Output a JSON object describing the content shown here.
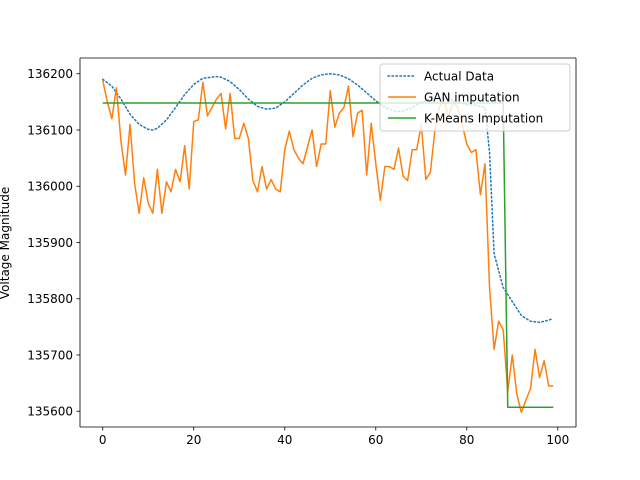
{
  "chart_data": {
    "type": "line",
    "title": "",
    "xlabel": "",
    "ylabel": "Voltage Magnitude",
    "xlim": [
      -5,
      104
    ],
    "ylim": [
      135572,
      136228
    ],
    "xticks": [
      0,
      20,
      40,
      60,
      80,
      100
    ],
    "yticks": [
      135600,
      135700,
      135800,
      135900,
      136000,
      136100,
      136200
    ],
    "grid": false,
    "legend_position": "top-right",
    "series": [
      {
        "name": "Actual Data",
        "color": "#1f77b4",
        "style": "dotted",
        "x": [
          0,
          2,
          4,
          6,
          8,
          10,
          11,
          12,
          14,
          16,
          18,
          20,
          22,
          24,
          25,
          26,
          28,
          30,
          32,
          34,
          36,
          37,
          38,
          40,
          42,
          44,
          46,
          48,
          50,
          51,
          52,
          54,
          56,
          58,
          60,
          62,
          64,
          65,
          66,
          68,
          70,
          72,
          74,
          75,
          76,
          78,
          80,
          82,
          84,
          85,
          86,
          88,
          90,
          92,
          94,
          96,
          98,
          99
        ],
        "values": [
          136190,
          136178,
          136155,
          136128,
          136110,
          136101,
          136100,
          136103,
          136118,
          136140,
          136163,
          136181,
          136192,
          136194,
          136195,
          136194,
          136186,
          136172,
          136155,
          136142,
          136137,
          136138,
          136139,
          136150,
          136165,
          136180,
          136192,
          136198,
          136200,
          136199,
          136198,
          136191,
          136180,
          136166,
          136152,
          136140,
          136134,
          136133,
          136134,
          136140,
          136150,
          136155,
          136156,
          136156,
          136155,
          136150,
          136145,
          136144,
          136140,
          136060,
          135880,
          135820,
          135795,
          135770,
          135760,
          135758,
          135762,
          135765
        ]
      },
      {
        "name": "GAN imputation",
        "color": "#ff7f0e",
        "style": "solid",
        "x": [
          0,
          1,
          2,
          3,
          4,
          5,
          6,
          7,
          8,
          9,
          10,
          11,
          12,
          13,
          14,
          15,
          16,
          17,
          18,
          19,
          20,
          21,
          22,
          23,
          24,
          25,
          26,
          27,
          28,
          29,
          30,
          31,
          32,
          33,
          34,
          35,
          36,
          37,
          38,
          39,
          40,
          41,
          42,
          43,
          44,
          45,
          46,
          47,
          48,
          49,
          50,
          51,
          52,
          53,
          54,
          55,
          56,
          57,
          58,
          59,
          60,
          61,
          62,
          63,
          64,
          65,
          66,
          67,
          68,
          69,
          70,
          71,
          72,
          73,
          74,
          75,
          76,
          77,
          78,
          79,
          80,
          81,
          82,
          83,
          84,
          85,
          86,
          87,
          88,
          89,
          90,
          91,
          92,
          93,
          94,
          95,
          96,
          97,
          98,
          99
        ],
        "values": [
          136188,
          136150,
          136120,
          136175,
          136080,
          136020,
          136110,
          136005,
          135952,
          136015,
          135970,
          135952,
          136030,
          135952,
          136008,
          135990,
          136030,
          136008,
          136072,
          135995,
          136115,
          136118,
          136185,
          136125,
          136140,
          136155,
          136165,
          136102,
          136165,
          136085,
          136085,
          136112,
          136085,
          136010,
          135990,
          136035,
          135995,
          136012,
          135995,
          135990,
          136065,
          136098,
          136065,
          136050,
          136040,
          136070,
          136100,
          136035,
          136075,
          136075,
          136170,
          136105,
          136130,
          136140,
          136178,
          136088,
          136130,
          136135,
          136020,
          136112,
          136040,
          135975,
          136035,
          136035,
          136030,
          136068,
          136018,
          136010,
          136065,
          136065,
          136110,
          136012,
          136025,
          136100,
          136142,
          136150,
          136125,
          136150,
          136140,
          136110,
          136075,
          136060,
          136065,
          135985,
          136040,
          135820,
          135710,
          135760,
          135745,
          135635,
          135700,
          135630,
          135598,
          135620,
          135640,
          135710,
          135660,
          135690,
          135645,
          135645
        ]
      },
      {
        "name": "K-Means Imputation",
        "color": "#2ca02c",
        "style": "solid",
        "x": [
          0,
          88,
          89,
          99
        ],
        "values": [
          136148,
          136148,
          135607,
          135607
        ]
      }
    ]
  }
}
